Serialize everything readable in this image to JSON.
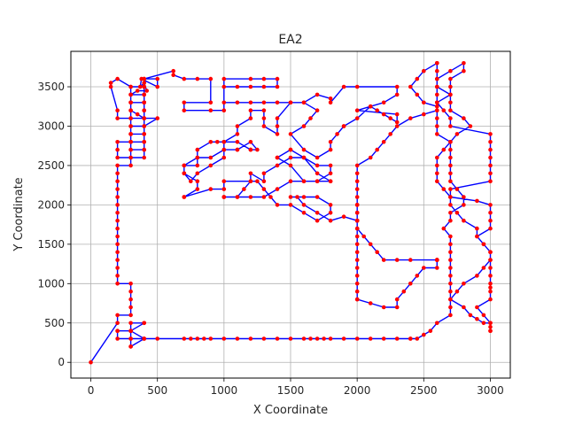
{
  "chart_data": {
    "type": "line",
    "title": "EA2",
    "xlabel": "X Coordinate",
    "ylabel": "Y Coordinate",
    "xlim": [
      -150,
      3150
    ],
    "ylim": [
      -200,
      3950
    ],
    "xticks": [
      0,
      500,
      1000,
      1500,
      2000,
      2500,
      3000
    ],
    "yticks": [
      0,
      500,
      1000,
      1500,
      2000,
      2500,
      3000,
      3500
    ],
    "grid": true,
    "legend": "none",
    "colors": {
      "route": "#0000ff",
      "points": "#ff0000",
      "grid": "#b0b0b0",
      "axes": "#000000"
    },
    "series": [
      {
        "marker": "circle",
        "x": [
          0,
          200,
          200,
          300,
          300,
          300,
          300,
          300,
          200,
          200,
          200,
          200,
          200,
          200,
          200,
          200,
          200,
          200,
          200,
          200,
          200,
          200,
          200,
          200,
          300,
          300,
          400,
          400,
          300,
          300,
          400,
          400,
          300,
          300,
          300,
          300,
          300,
          300,
          400,
          400,
          400,
          400,
          500,
          400,
          300,
          300,
          300,
          400,
          400,
          300,
          300,
          200,
          200,
          200,
          300,
          300,
          400,
          400,
          400,
          350,
          300,
          300,
          300,
          350,
          420,
          400,
          370,
          380,
          500,
          500,
          400,
          400,
          400,
          400,
          300,
          300,
          300,
          400,
          400,
          400,
          400,
          400,
          300,
          200,
          200,
          150,
          150,
          200,
          300,
          400,
          400,
          620,
          620,
          700,
          800,
          900,
          900,
          700,
          700,
          900,
          1000,
          1000,
          1200,
          1300,
          1400,
          1400,
          1300,
          1200,
          1100,
          1000,
          1000,
          1100,
          1200,
          1300,
          1400,
          1500,
          1600,
          1700,
          1800,
          1800,
          1900,
          2000,
          2300,
          2300,
          2200,
          2100,
          2000,
          2300,
          2300,
          2250,
          2200,
          2150,
          2100,
          2000,
          1900,
          1900,
          1850,
          1800,
          1800,
          1700,
          1600,
          1500,
          1600,
          1650,
          1700,
          1600,
          1500,
          1400,
          1400,
          1400,
          1300,
          1300,
          1300,
          1200,
          1200,
          1100,
          1100,
          1000,
          1000,
          900,
          800,
          800,
          700,
          700,
          750,
          800,
          900,
          1000,
          1000,
          1100,
          1100,
          1200,
          1250,
          1200,
          1200,
          1100,
          1000,
          950,
          900,
          800,
          800,
          700,
          700,
          800,
          800,
          700,
          700,
          900,
          1000,
          1000,
          1200,
          1200,
          1300,
          1300,
          1400,
          1500,
          1600,
          1700,
          1800,
          1800,
          1700,
          1600,
          1500,
          1400,
          1400,
          1500,
          1500,
          1600,
          1700,
          1800,
          1800,
          1700,
          1600,
          1500,
          1400,
          1300,
          1200,
          1100,
          1000,
          1000,
          1000,
          1100,
          1150,
          1200,
          1250,
          1300,
          1350,
          1400,
          1500,
          1600,
          1700,
          1800,
          1800,
          1700,
          1600,
          1500,
          1550,
          1600,
          1700,
          1800,
          1900,
          2000,
          2000,
          2000,
          2000,
          2000,
          2000,
          2000,
          2000,
          2050,
          2100,
          2150,
          2200,
          2300,
          2400,
          2600,
          2600,
          2600,
          2600,
          2600,
          2600,
          2500,
          2450,
          2400,
          2350,
          2300,
          2300,
          2200,
          2100,
          2000,
          2000,
          2000,
          2000,
          2000,
          2000,
          2000,
          2000,
          2000,
          2000,
          2000,
          2000,
          2000,
          2000,
          2000,
          2000,
          2000,
          2000,
          2000,
          2100,
          2150,
          2200,
          2250,
          2300,
          2400,
          2500,
          2600,
          2600,
          2500,
          2450,
          2400,
          2450,
          2500,
          2600,
          2600,
          2600,
          2600,
          2600,
          2600,
          2600,
          2600,
          2600,
          2600,
          2600,
          2700,
          2700,
          2700,
          2700,
          2700,
          2700,
          2750,
          2800,
          2800,
          2700,
          2700,
          2650,
          2700,
          2700,
          2700,
          2700,
          2700,
          2700,
          2700,
          2700,
          2700,
          2800,
          2850,
          2900,
          2950,
          3000,
          3000,
          3000,
          3000,
          3000,
          2950,
          2900,
          3000,
          3000,
          3000,
          3000,
          3000,
          3000,
          3000,
          3000,
          2950,
          2900,
          3000,
          3000,
          3000,
          3000,
          2900,
          2700,
          2700,
          3000,
          3000,
          3000,
          3000,
          3000,
          3000,
          3000,
          2700,
          2700,
          2650,
          2600,
          2700,
          2700,
          2700,
          2800,
          2800,
          2700,
          2600,
          2600,
          2700,
          2700,
          2700,
          2800,
          2850,
          2750,
          2700,
          2650,
          2600,
          2600,
          2600,
          2600,
          2650,
          2700,
          2700,
          2750,
          2800,
          2900,
          2900,
          2950,
          3000,
          3000,
          2950,
          2900,
          2800,
          2750,
          2700,
          2700,
          2700,
          2600,
          2550,
          2500,
          2450,
          2400,
          2400,
          2300,
          2200,
          2100,
          2000,
          1900,
          1800,
          1750,
          1700,
          1650,
          1600,
          1500,
          1400,
          1300,
          1200,
          1100,
          1000,
          900,
          850,
          800,
          750,
          700,
          500,
          400,
          300,
          300,
          200,
          300,
          300,
          400,
          400,
          300,
          300,
          400,
          400,
          300,
          300,
          300,
          200,
          200
        ],
        "y": [
          0,
          500,
          600,
          600,
          700,
          800,
          900,
          1000,
          1000,
          1100,
          1200,
          1300,
          1400,
          1500,
          1600,
          1700,
          1800,
          1900,
          2000,
          2100,
          2200,
          2300,
          2400,
          2500,
          2500,
          2600,
          2600,
          2700,
          2700,
          2800,
          2800,
          2900,
          2900,
          3000,
          3100,
          3200,
          3300,
          3400,
          3400,
          3300,
          3200,
          3100,
          3100,
          3000,
          3000,
          2900,
          2800,
          2800,
          2700,
          2700,
          2600,
          2600,
          2700,
          2800,
          2800,
          2900,
          2900,
          3000,
          3100,
          3150,
          3200,
          3300,
          3400,
          3450,
          3450,
          3550,
          3500,
          3600,
          3500,
          3600,
          3600,
          3500,
          3400,
          3300,
          3300,
          3400,
          3500,
          3500,
          3400,
          3300,
          3200,
          3100,
          3100,
          3100,
          3200,
          3500,
          3550,
          3600,
          3500,
          3500,
          3600,
          3700,
          3650,
          3600,
          3600,
          3600,
          3300,
          3300,
          3200,
          3200,
          3200,
          3600,
          3600,
          3600,
          3600,
          3500,
          3500,
          3500,
          3500,
          3500,
          3300,
          3300,
          3300,
          3300,
          3300,
          3300,
          3300,
          3400,
          3350,
          3300,
          3500,
          3500,
          3500,
          3400,
          3300,
          3250,
          3200,
          3150,
          3050,
          3100,
          3150,
          3200,
          3250,
          3100,
          3000,
          3000,
          2900,
          2800,
          2700,
          2600,
          2700,
          2900,
          3000,
          3100,
          3200,
          3300,
          3300,
          3100,
          3000,
          2900,
          3000,
          3100,
          3200,
          3200,
          3100,
          3000,
          2900,
          2800,
          2700,
          2600,
          2600,
          2500,
          2500,
          2400,
          2300,
          2400,
          2500,
          2600,
          2700,
          2700,
          2700,
          2800,
          2700,
          2700,
          2700,
          2800,
          2800,
          2800,
          2800,
          2700,
          2600,
          2500,
          2400,
          2300,
          2200,
          2100,
          2100,
          2200,
          2200,
          2300,
          2300,
          2400,
          2300,
          2400,
          2500,
          2600,
          2600,
          2400,
          2300,
          2300,
          2300,
          2300,
          2500,
          2600,
          2600,
          2700,
          2700,
          2600,
          2500,
          2500,
          2400,
          2300,
          2300,
          2300,
          2200,
          2100,
          2100,
          2100,
          2100,
          2100,
          2100,
          2100,
          2200,
          2300,
          2300,
          2200,
          2100,
          2000,
          2000,
          1900,
          1800,
          1900,
          2000,
          2100,
          2100,
          2100,
          2100,
          2000,
          1900,
          1800,
          1850,
          1800,
          1800,
          1800,
          2000,
          2000,
          1900,
          1800,
          1700,
          1600,
          1500,
          1400,
          1300,
          1300,
          1300,
          1300,
          1300,
          1300,
          1300,
          1300,
          1200,
          1200,
          1100,
          1000,
          900,
          800,
          700,
          700,
          750,
          800,
          800,
          900,
          1000,
          1100,
          1200,
          1300,
          1400,
          1500,
          1600,
          1700,
          1800,
          1900,
          2000,
          2100,
          2200,
          2300,
          2400,
          2500,
          2600,
          2700,
          2800,
          2900,
          3000,
          3100,
          3150,
          3200,
          3250,
          3300,
          3400,
          3500,
          3600,
          3700,
          3800,
          3800,
          3700,
          3600,
          3500,
          3400,
          3300,
          3200,
          3100,
          3000,
          2900,
          2800,
          2700,
          2600,
          2500,
          2400,
          2300,
          2200,
          2100,
          2000,
          1900,
          1800,
          1700,
          1600,
          1500,
          1400,
          1300,
          1200,
          1100,
          1000,
          900,
          800,
          700,
          600,
          550,
          500,
          500,
          450,
          400,
          400,
          500,
          600,
          700,
          800,
          900,
          950,
          1000,
          1100,
          1200,
          1300,
          1400,
          1500,
          1600,
          1700,
          1800,
          1900,
          2000,
          2050,
          2100,
          2200,
          2300,
          2400,
          2500,
          2600,
          2700,
          2800,
          2900,
          3000,
          3100,
          3200,
          3300,
          3400,
          3500,
          3600,
          3700,
          3800,
          3700,
          3600,
          3500,
          3400,
          3300,
          3200,
          3100,
          3000,
          2900,
          2800,
          2700,
          2600,
          2500,
          2400,
          2300,
          2200,
          2100,
          2000,
          1900,
          1800,
          1700,
          1600,
          1500,
          1400,
          1300,
          1200,
          1100,
          1000,
          900,
          800,
          700,
          600,
          500,
          400,
          350,
          300,
          300,
          300,
          300,
          300,
          300,
          300,
          300,
          300,
          300,
          300,
          300,
          300,
          300,
          300,
          300,
          300,
          300,
          300,
          300,
          300,
          300,
          300,
          300,
          300,
          300,
          300,
          400,
          400,
          400,
          500,
          500,
          500,
          400,
          400,
          300,
          300,
          200,
          200,
          300,
          300,
          400
        ]
      }
    ]
  }
}
